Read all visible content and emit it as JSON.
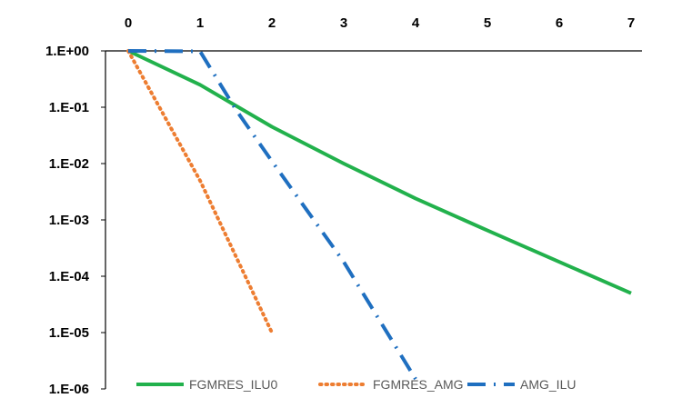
{
  "chart_data": {
    "type": "line",
    "title": "",
    "xlabel": "",
    "ylabel": "",
    "x_axis_position": "top",
    "xlim": [
      0,
      7
    ],
    "x_ticks": [
      0,
      1,
      2,
      3,
      4,
      5,
      6,
      7
    ],
    "y_scale": "log",
    "ylim": [
      1e-06,
      1
    ],
    "y_ticks": [
      1,
      0.1,
      0.01,
      0.001,
      0.0001,
      1e-05,
      1e-06
    ],
    "y_tick_labels": [
      "1.E+00",
      "1.E-01",
      "1.E-02",
      "1.E-03",
      "1.E-04",
      "1.E-05",
      "1.E-06"
    ],
    "grid": false,
    "legend_position": "bottom",
    "series": [
      {
        "name": "FGMRES_ILU0",
        "color": "#22b14c",
        "style": "solid",
        "points": [
          [
            0,
            1.0
          ],
          [
            1,
            0.25
          ],
          [
            2,
            0.045
          ],
          [
            3,
            0.01
          ],
          [
            4,
            0.0024
          ],
          [
            5,
            0.00065
          ],
          [
            6,
            0.00018
          ],
          [
            7,
            5e-05
          ]
        ]
      },
      {
        "name": "FGMRES_AMG",
        "color": "#ed7d31",
        "style": "dotted",
        "points": [
          [
            0,
            1.0
          ],
          [
            1,
            0.005
          ],
          [
            2,
            1e-05
          ]
        ]
      },
      {
        "name": "AMG_ILU",
        "color": "#1f6fc0",
        "style": "dashdot",
        "points": [
          [
            0,
            1.0
          ],
          [
            1,
            0.98
          ],
          [
            1.5,
            0.09
          ],
          [
            2,
            0.011
          ],
          [
            3,
            0.00018
          ],
          [
            4,
            1.5e-06
          ]
        ]
      }
    ]
  }
}
